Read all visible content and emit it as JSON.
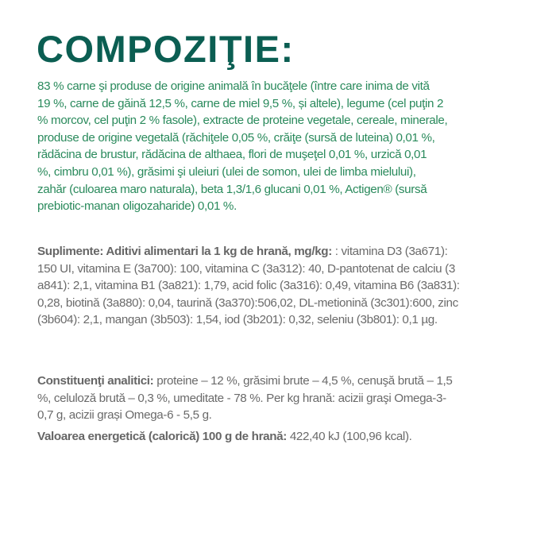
{
  "title": "COMPOZIŢIE:",
  "composition_lines": [
    "83 % carne şi produse de origine animală în bucăţele (între care  inima de vită",
    "19 %,  carne de găină 12,5  %, carne de miel 9,5 %, și altele), legume (cel puţin 2",
    "% morcov, cel puţin 2 % fasole), extracte de proteine vegetale, cereale, minerale,",
    "produse de origine vegetală (răchiţele 0,05 %, crăiţe (sursă de luteina) 0,01 %,",
    "rădăcina de brustur, rădăcina de althaea, flori de muşeţel 0,01 %, urzică 0,01",
    "%, cimbru 0,01 %), grăsimi şi uleiuri (ulei de somon, ulei de limba mielului),",
    "zahăr (culoarea maro naturala), beta 1,3/1,6 glucani 0,01 %, Actigen® (sursă",
    "prebiotic-manan oligozaharide) 0,01 %."
  ],
  "supplements": {
    "label": "Suplimente: Aditivi alimentari la 1 kg de hrană, mg/kg:",
    "first_line_rest": " : vitamina D3 (3a671):",
    "lines": [
      "150 UI, vitamina E (3a700): 100, vitamina C (3a312): 40, D-pantotenat de calciu (3",
      "a841): 2,1, vitamina B1 (3a821): 1,79, acid folic (3a316): 0,49, vitamina B6 (3a831):",
      "0,28, biotină (3a880): 0,04, taurină (3a370):506,02, DL-metionină (3c301):600, zinc",
      "(3b604): 2,1, mangan (3b503): 1,54, iod (3b201): 0,32, seleniu (3b801): 0,1 µg."
    ]
  },
  "analytical": {
    "label": "Constituenţi analitici:",
    "first_line_rest": " proteine – 12 %, grăsimi brute – 4,5 %, cenuşă brută – 1,5",
    "lines": [
      "%, celuloză brută – 0,3 %, umeditate - 78 %. Per kg hrană: acizii graşi Omega-3-",
      "0,7 g, acizii grași Omega-6 - 5,5 g."
    ]
  },
  "energy": {
    "label": "Valoarea energetică (calorică) 100 g de hrană:",
    "value": " 422,40 kJ (100,96 kcal)."
  },
  "colors": {
    "title": "#0b5e52",
    "composition_text": "#2a8a5c",
    "body_text": "#6a6a6a"
  }
}
